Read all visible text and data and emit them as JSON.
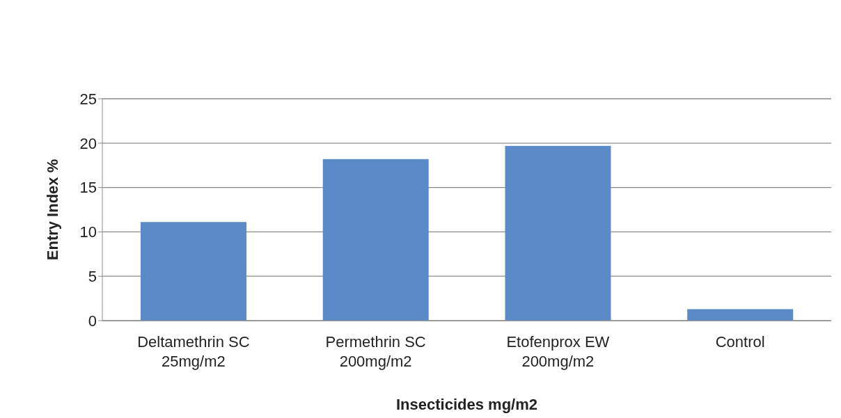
{
  "chart_data": {
    "type": "bar",
    "xlabel": "Insecticides mg/m2",
    "ylabel": "Entry Index %",
    "categories": [
      "Deltamethrin SC\n25mg/m2",
      "Permethrin SC\n200mg/m2",
      "Etofenprox EW\n200mg/m2",
      "Control"
    ],
    "values": [
      11.1,
      18.2,
      19.7,
      1.3
    ],
    "color": "#5b8bc6",
    "ylim": [
      0,
      25
    ],
    "yticks": [
      0,
      5,
      10,
      15,
      20,
      25
    ],
    "grid": "y",
    "legend": false
  }
}
